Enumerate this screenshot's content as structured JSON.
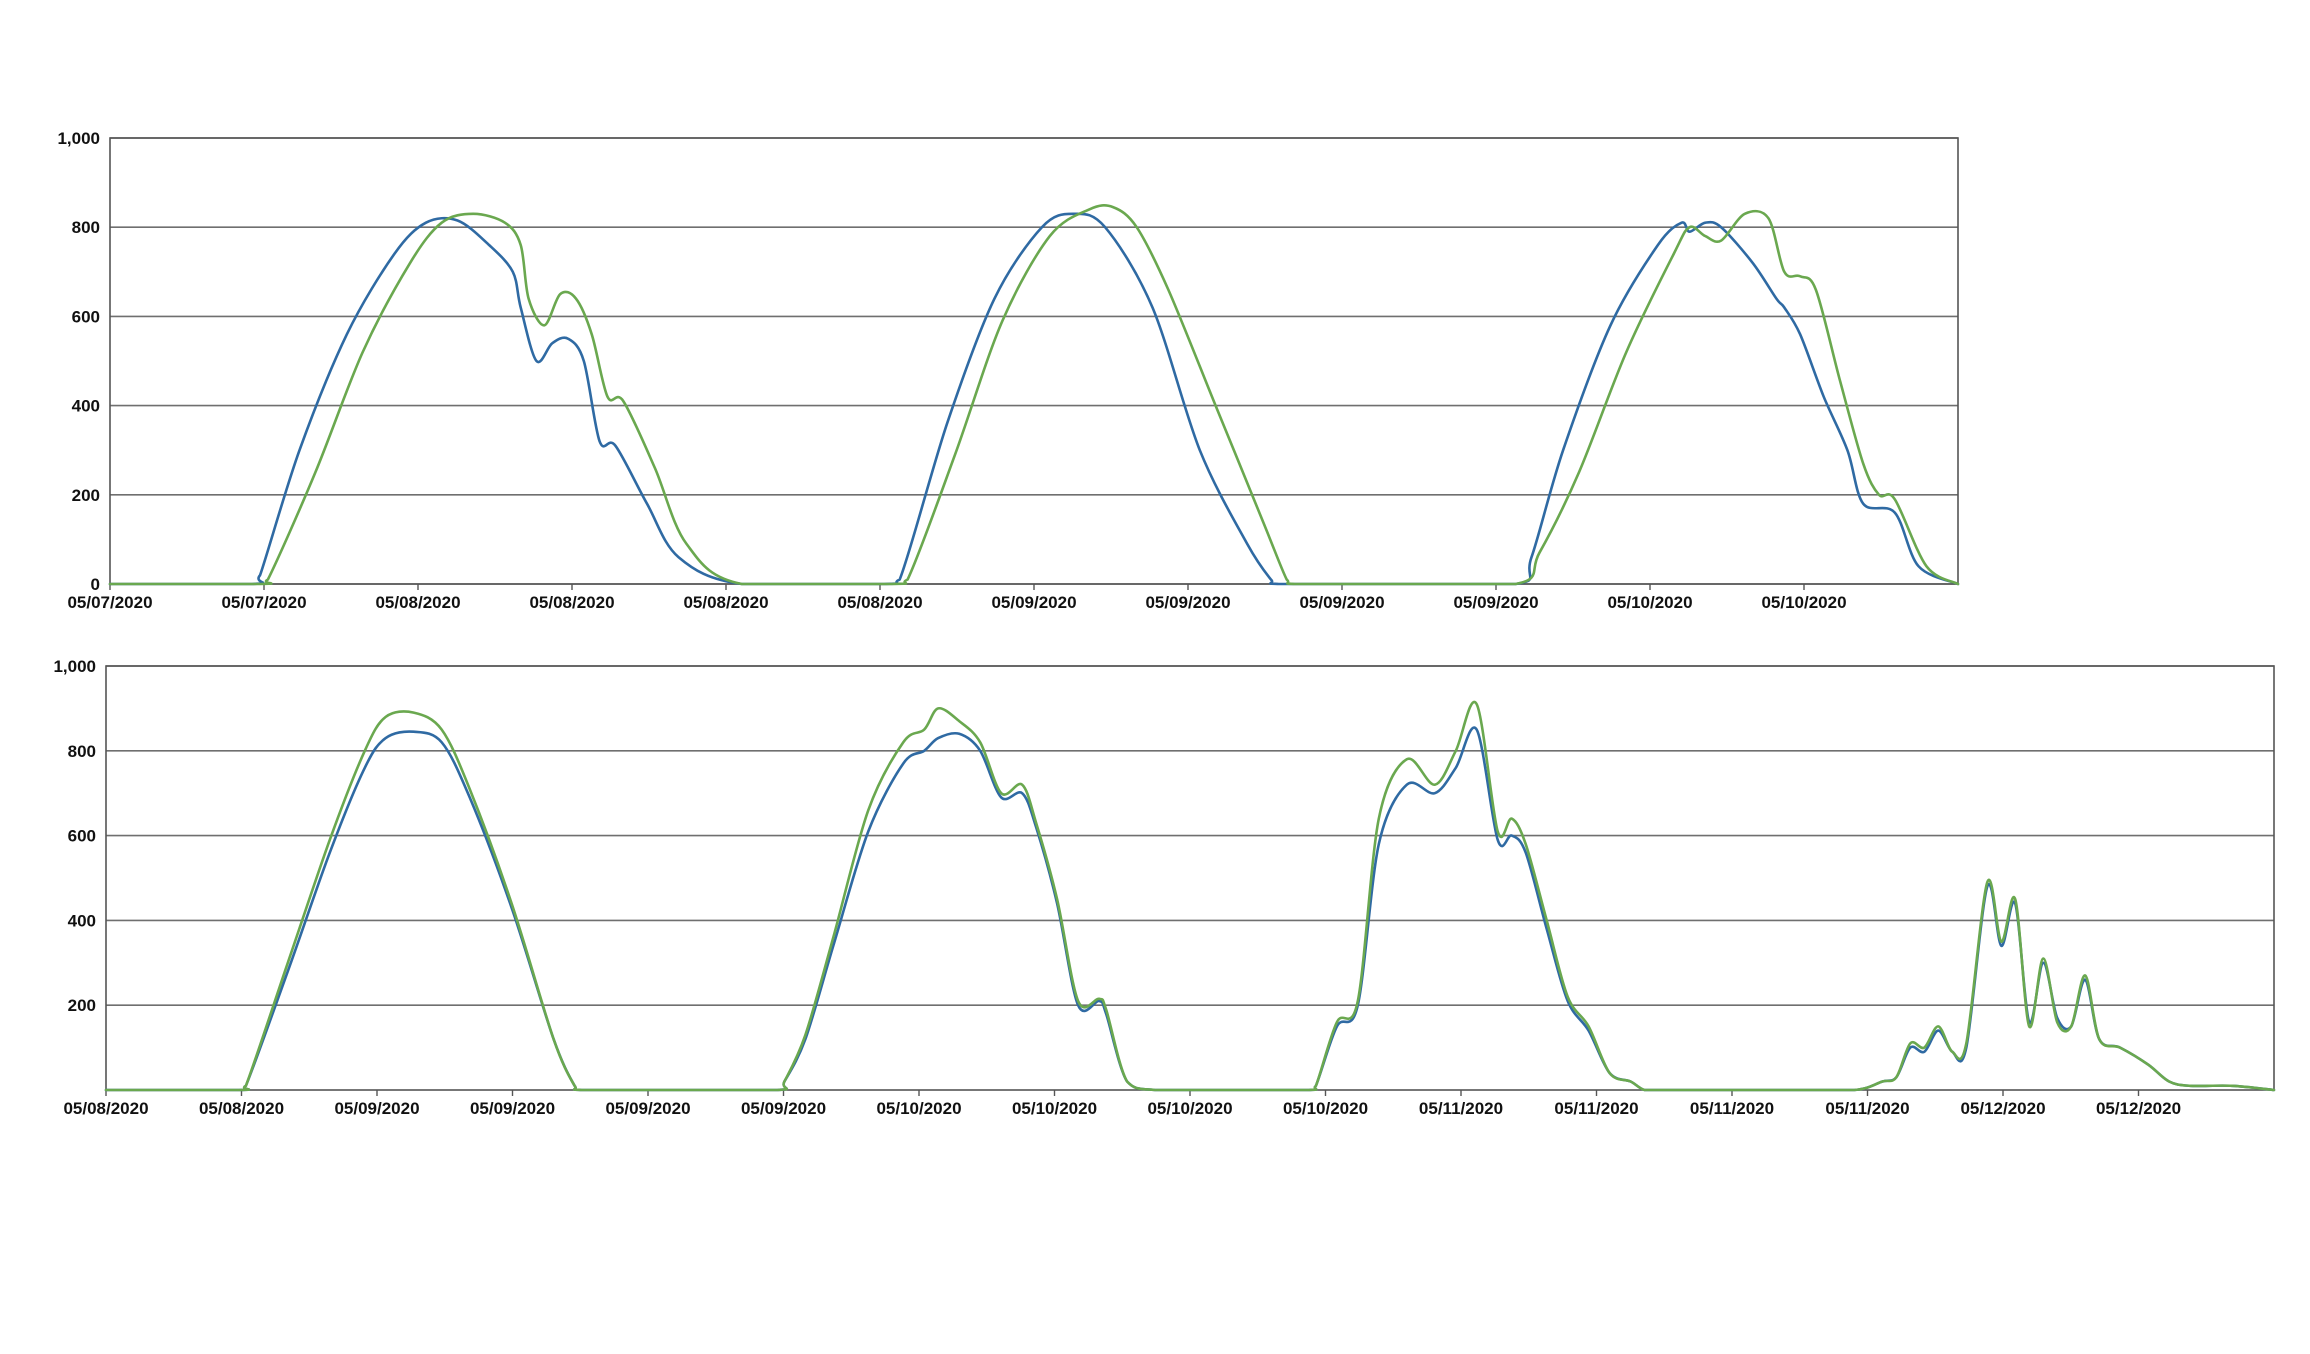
{
  "colors": {
    "series_blue": "#2f6aa3",
    "series_green": "#6aa84f",
    "grid": "#6f6f6f",
    "frame": "#555555",
    "background": "#ffffff"
  },
  "chart_data": [
    {
      "type": "line",
      "title": "",
      "xlabel": "",
      "ylabel": "",
      "ylim": [
        0,
        1000
      ],
      "yticks": [
        0,
        200,
        400,
        600,
        800,
        1000
      ],
      "ytick_labels": [
        "0",
        "200",
        "400",
        "600",
        "800",
        "1,000"
      ],
      "grid": true,
      "legend": "none",
      "xlim": [
        0,
        11.7
      ],
      "xtick_labels": [
        "05/07/2020",
        "05/07/2020",
        "05/08/2020",
        "05/08/2020",
        "05/08/2020",
        "05/08/2020",
        "05/09/2020",
        "05/09/2020",
        "05/09/2020",
        "05/09/2020",
        "05/10/2020",
        "05/10/2020"
      ],
      "series": [
        {
          "color": "series_blue",
          "x": [
            0,
            0.9,
            0.95,
            1.2,
            1.5,
            1.8,
            2.0,
            2.2,
            2.4,
            2.55,
            2.6,
            2.7,
            2.8,
            2.9,
            3.0,
            3.1,
            3.2,
            3.4,
            3.6,
            4.0,
            4.9,
            5.0,
            5.3,
            5.6,
            5.9,
            6.1,
            6.3,
            6.6,
            6.9,
            7.2,
            7.35,
            7.4,
            8.0,
            8.9,
            9.0,
            9.2,
            9.5,
            9.8,
            9.95,
            10.0,
            10.1,
            10.2,
            10.4,
            10.55,
            10.6,
            10.7,
            10.85,
            11.0,
            11.1,
            11.3,
            11.45,
            11.7
          ],
          "y": [
            0,
            0,
            20,
            300,
            560,
            740,
            810,
            815,
            760,
            700,
            620,
            500,
            540,
            550,
            500,
            320,
            310,
            180,
            60,
            0,
            0,
            10,
            360,
            640,
            800,
            830,
            800,
            620,
            300,
            90,
            10,
            0,
            0,
            0,
            60,
            300,
            580,
            760,
            810,
            790,
            810,
            800,
            720,
            640,
            620,
            560,
            420,
            300,
            180,
            160,
            40,
            0
          ]
        },
        {
          "color": "series_green",
          "x": [
            0,
            0.95,
            1.0,
            1.3,
            1.6,
            1.9,
            2.1,
            2.3,
            2.5,
            2.6,
            2.65,
            2.75,
            2.85,
            2.95,
            3.05,
            3.15,
            3.25,
            3.45,
            3.65,
            4.0,
            4.95,
            5.05,
            5.35,
            5.65,
            5.95,
            6.2,
            6.35,
            6.5,
            6.7,
            7.0,
            7.3,
            7.45,
            7.5,
            8.0,
            8.9,
            9.05,
            9.3,
            9.6,
            9.9,
            10.0,
            10.1,
            10.2,
            10.35,
            10.5,
            10.6,
            10.7,
            10.8,
            10.95,
            11.1,
            11.2,
            11.3,
            11.5,
            11.7
          ],
          "y": [
            0,
            0,
            10,
            250,
            520,
            720,
            810,
            830,
            810,
            760,
            640,
            580,
            650,
            640,
            560,
            420,
            410,
            260,
            90,
            0,
            0,
            10,
            290,
            590,
            780,
            840,
            845,
            800,
            660,
            400,
            140,
            10,
            0,
            0,
            0,
            70,
            250,
            520,
            740,
            800,
            780,
            770,
            830,
            820,
            700,
            690,
            660,
            460,
            270,
            200,
            190,
            40,
            0
          ]
        }
      ]
    },
    {
      "type": "line",
      "title": "",
      "xlabel": "",
      "ylabel": "",
      "ylim": [
        0,
        1000
      ],
      "yticks": [
        200,
        400,
        600,
        800,
        1000
      ],
      "ytick_labels": [
        "200",
        "400",
        "600",
        "800",
        "1,000"
      ],
      "grid": true,
      "legend": "none",
      "xlim": [
        0,
        15.5
      ],
      "xtick_labels": [
        "05/08/2020",
        "05/08/2020",
        "05/09/2020",
        "05/09/2020",
        "05/09/2020",
        "05/09/2020",
        "05/10/2020",
        "05/10/2020",
        "05/10/2020",
        "05/10/2020",
        "05/11/2020",
        "05/11/2020",
        "05/11/2020",
        "05/11/2020",
        "05/12/2020",
        "05/12/2020"
      ],
      "series": [
        {
          "color": "series_blue",
          "x": [
            0,
            0.95,
            1.0,
            1.3,
            1.6,
            1.85,
            2.0,
            2.2,
            2.4,
            2.6,
            2.9,
            3.2,
            3.35,
            3.4,
            4.0,
            4.8,
            4.85,
            5.0,
            5.2,
            5.45,
            5.7,
            5.85,
            5.95,
            6.1,
            6.25,
            6.4,
            6.55,
            6.65,
            6.8,
            6.95,
            7.1,
            7.15,
            7.3,
            7.5,
            8.0,
            8.6,
            8.65,
            8.8,
            8.95,
            9.1,
            9.3,
            9.5,
            9.65,
            9.8,
            9.95,
            10.05,
            10.15,
            10.3,
            10.45,
            10.6,
            10.75,
            10.9,
            11.0,
            11.15,
            11.3,
            11.5,
            12.0,
            12.5,
            12.7,
            12.8,
            12.9,
            13.0,
            13.1,
            13.2,
            13.3,
            13.45,
            13.55,
            13.65,
            13.75,
            13.85,
            13.95,
            14.05,
            14.15,
            14.25,
            14.4,
            14.6,
            14.75,
            14.9,
            15.2,
            15.5
          ],
          "y": [
            0,
            0,
            10,
            280,
            560,
            760,
            830,
            845,
            820,
            690,
            430,
            120,
            10,
            0,
            0,
            0,
            20,
            120,
            340,
            610,
            770,
            800,
            830,
            840,
            800,
            690,
            700,
            620,
            440,
            200,
            210,
            180,
            20,
            0,
            0,
            0,
            10,
            150,
            200,
            580,
            720,
            700,
            760,
            850,
            590,
            600,
            560,
            380,
            210,
            140,
            40,
            20,
            0,
            0,
            0,
            0,
            0,
            0,
            20,
            30,
            100,
            90,
            140,
            90,
            100,
            480,
            340,
            440,
            160,
            300,
            170,
            150,
            260,
            120,
            100,
            60,
            20,
            10,
            10,
            0
          ]
        },
        {
          "color": "series_green",
          "x": [
            0,
            0.95,
            1.0,
            1.3,
            1.6,
            1.85,
            2.0,
            2.2,
            2.4,
            2.6,
            2.9,
            3.2,
            3.35,
            3.4,
            4.0,
            4.8,
            4.85,
            5.0,
            5.2,
            5.45,
            5.7,
            5.85,
            5.95,
            6.1,
            6.25,
            6.4,
            6.55,
            6.65,
            6.8,
            6.95,
            7.1,
            7.15,
            7.3,
            7.5,
            8.0,
            8.6,
            8.65,
            8.8,
            8.95,
            9.1,
            9.3,
            9.5,
            9.65,
            9.8,
            9.95,
            10.05,
            10.15,
            10.3,
            10.45,
            10.6,
            10.75,
            10.9,
            11.0,
            11.15,
            11.3,
            11.5,
            12.0,
            12.5,
            12.7,
            12.8,
            12.9,
            13.0,
            13.1,
            13.2,
            13.3,
            13.45,
            13.55,
            13.65,
            13.75,
            13.85,
            13.95,
            14.05,
            14.15,
            14.25,
            14.4,
            14.6,
            14.75,
            14.9,
            15.2,
            15.5
          ],
          "y": [
            0,
            0,
            10,
            300,
            590,
            800,
            880,
            890,
            850,
            710,
            440,
            120,
            10,
            0,
            0,
            0,
            20,
            130,
            360,
            660,
            820,
            850,
            900,
            870,
            820,
            700,
            720,
            630,
            450,
            210,
            215,
            190,
            20,
            0,
            0,
            0,
            10,
            160,
            210,
            640,
            780,
            720,
            800,
            910,
            610,
            640,
            580,
            400,
            220,
            150,
            40,
            20,
            0,
            0,
            0,
            0,
            0,
            0,
            20,
            30,
            110,
            100,
            150,
            90,
            110,
            490,
            350,
            450,
            150,
            310,
            160,
            150,
            270,
            120,
            100,
            60,
            20,
            10,
            10,
            0
          ]
        }
      ]
    }
  ]
}
